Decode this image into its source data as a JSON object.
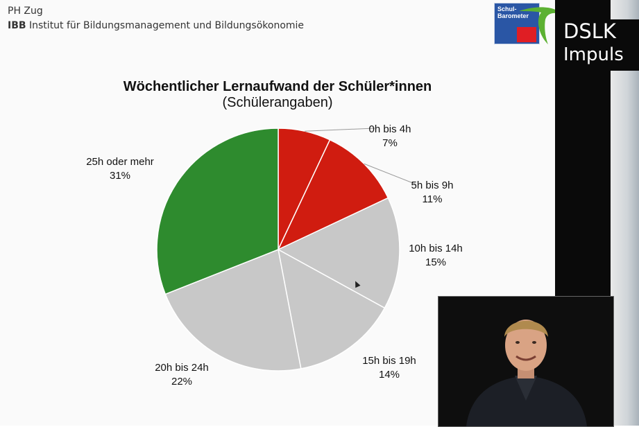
{
  "header": {
    "line1": "PH Zug",
    "line2_abbr": "IBB",
    "line2_rest": "Institut für Bildungsmanagement und Bildungsökonomie"
  },
  "logo": {
    "text_line1": "Schul-",
    "text_line2": "Barometer",
    "colors": {
      "blue": "#2a56a5",
      "red": "#e01e24",
      "green": "#5cb132"
    }
  },
  "brand": {
    "line1": "DSLK",
    "line2": "Impuls"
  },
  "chart_data": {
    "type": "pie",
    "title": "Wöchentlicher Lernaufwand der Schüler*innen",
    "subtitle": "(Schülerangaben)",
    "slices": [
      {
        "label": "0h bis 4h",
        "value": 7,
        "value_label": "7%",
        "color": "#d01c10"
      },
      {
        "label": "5h bis 9h",
        "value": 11,
        "value_label": "11%",
        "color": "#d01c10"
      },
      {
        "label": "10h bis 14h",
        "value": 15,
        "value_label": "15%",
        "color": "#c8c8c8"
      },
      {
        "label": "15h bis 19h",
        "value": 14,
        "value_label": "14%",
        "color": "#c8c8c8"
      },
      {
        "label": "20h bis 24h",
        "value": 22,
        "value_label": "22%",
        "color": "#c8c8c8"
      },
      {
        "label": "25h oder mehr",
        "value": 31,
        "value_label": "31%",
        "color": "#2e8b2e"
      }
    ],
    "start_angle": "12 o'clock",
    "direction": "clockwise"
  }
}
